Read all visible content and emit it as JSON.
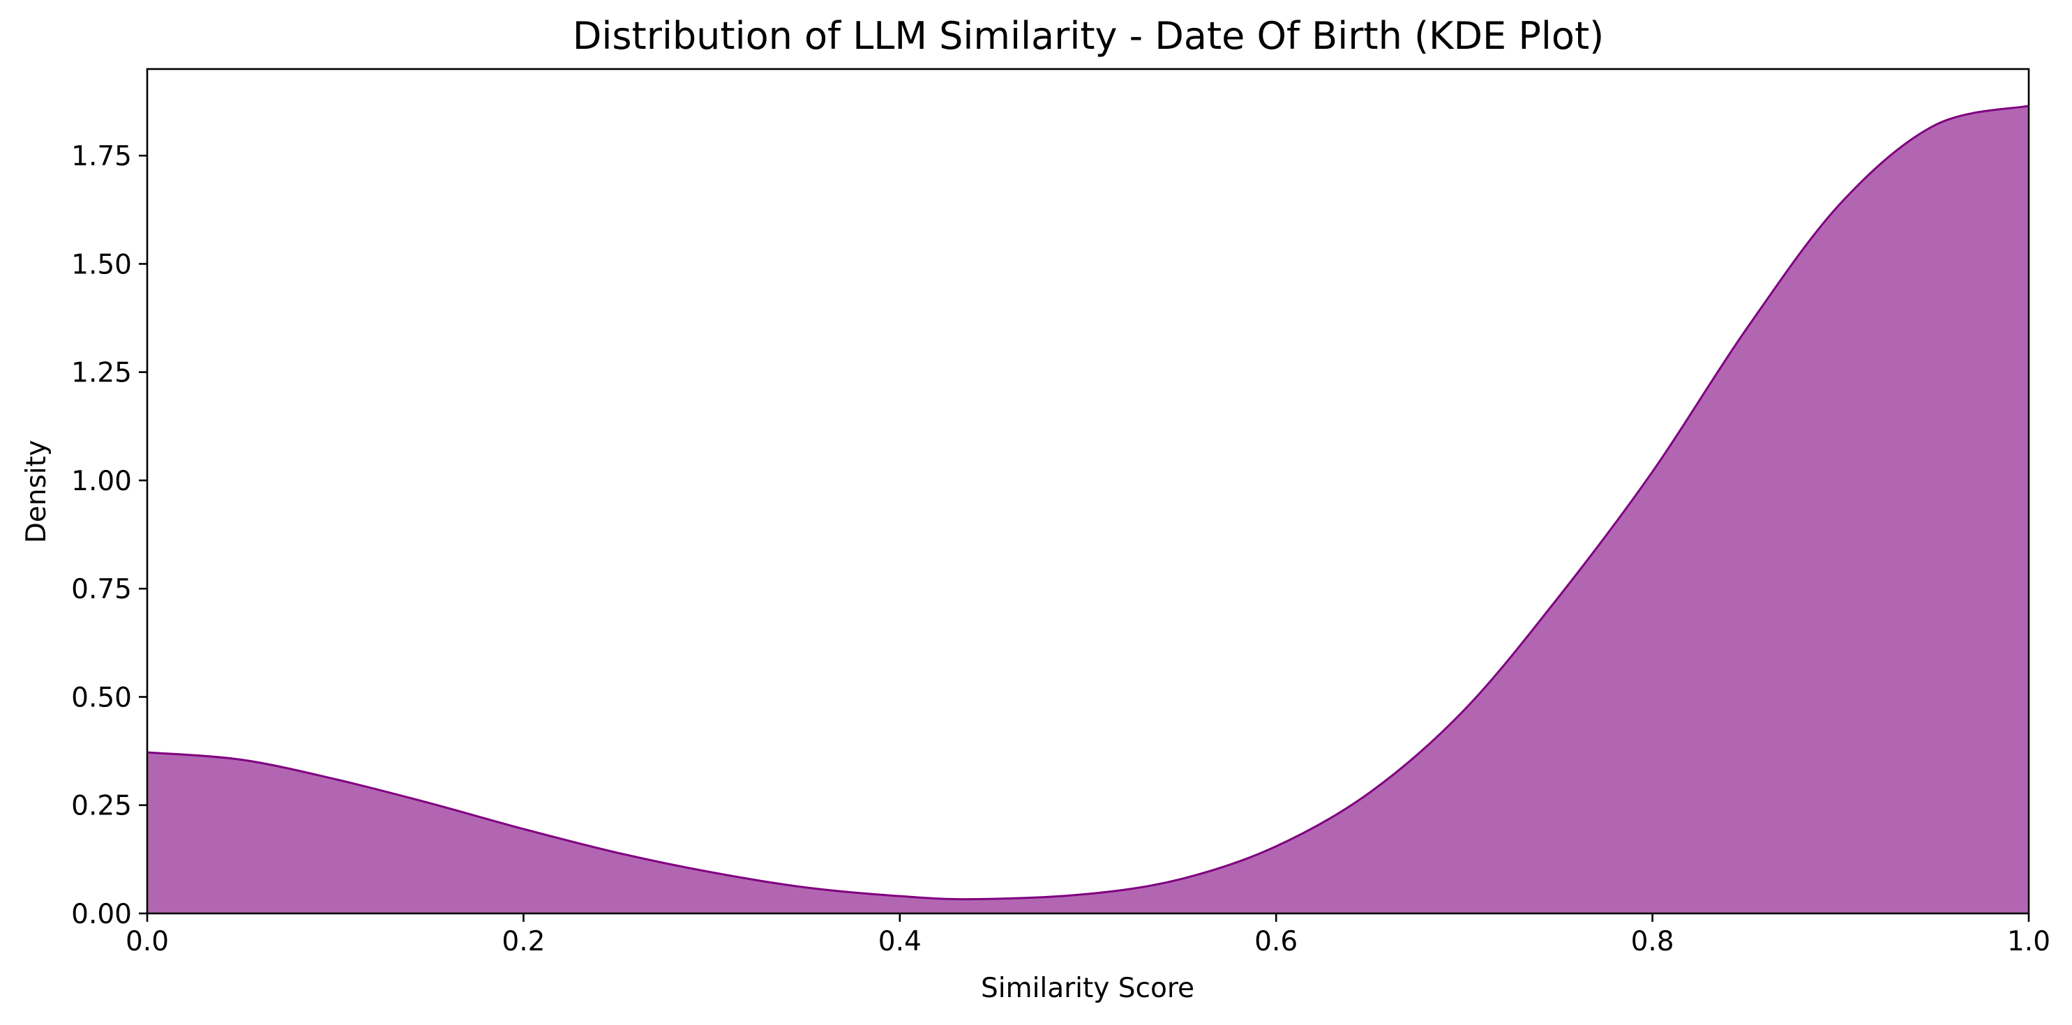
{
  "chart_data": {
    "type": "area",
    "title": "Distribution of LLM Similarity - Date Of Birth (KDE Plot)",
    "xlabel": "Similarity Score",
    "ylabel": "Density",
    "xlim": [
      0.0,
      1.0
    ],
    "ylim": [
      0.0,
      1.95
    ],
    "x_ticks": [
      0.0,
      0.2,
      0.4,
      0.6,
      0.8,
      1.0
    ],
    "x_tick_labels": [
      "0.0",
      "0.2",
      "0.4",
      "0.6",
      "0.8",
      "1.0"
    ],
    "y_ticks": [
      0.0,
      0.25,
      0.5,
      0.75,
      1.0,
      1.25,
      1.5,
      1.75
    ],
    "y_tick_labels": [
      "0.00",
      "0.25",
      "0.50",
      "0.75",
      "1.00",
      "1.25",
      "1.50",
      "1.75"
    ],
    "grid": false,
    "colors": {
      "fill": "#b266b2",
      "line": "#800080"
    },
    "series": [
      {
        "x": [
          0.0,
          0.05,
          0.1,
          0.15,
          0.2,
          0.25,
          0.3,
          0.35,
          0.4,
          0.44,
          0.5,
          0.55,
          0.6,
          0.65,
          0.7,
          0.75,
          0.8,
          0.85,
          0.9,
          0.95,
          1.0
        ],
        "y": [
          0.372,
          0.355,
          0.31,
          0.255,
          0.195,
          0.14,
          0.095,
          0.06,
          0.04,
          0.033,
          0.045,
          0.08,
          0.155,
          0.28,
          0.47,
          0.73,
          1.02,
          1.35,
          1.64,
          1.82,
          1.865
        ]
      }
    ]
  }
}
